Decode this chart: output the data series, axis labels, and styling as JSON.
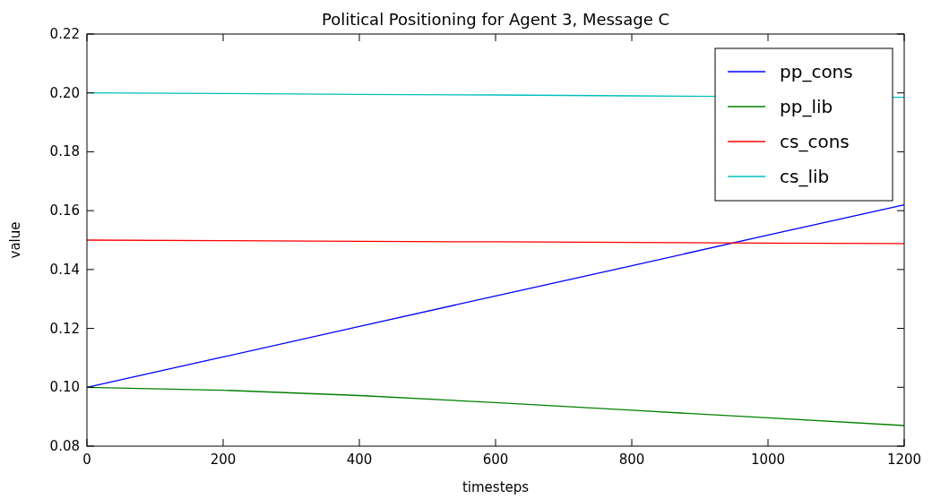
{
  "chart_data": {
    "type": "line",
    "title": "Political Positioning for Agent 3, Message C",
    "xlabel": "timesteps",
    "ylabel": "value",
    "x": [
      0,
      200,
      400,
      600,
      800,
      1000,
      1200
    ],
    "series": [
      {
        "name": "pp_cons",
        "color": "#0000ff",
        "values": [
          0.1,
          0.1103,
          0.1207,
          0.131,
          0.1413,
          0.1517,
          0.162
        ]
      },
      {
        "name": "pp_lib",
        "color": "#008000",
        "values": [
          0.1,
          0.099,
          0.0972,
          0.0948,
          0.0922,
          0.0896,
          0.087
        ]
      },
      {
        "name": "cs_cons",
        "color": "#ff0000",
        "values": [
          0.15,
          0.1498,
          0.1496,
          0.1494,
          0.1492,
          0.149,
          0.1488
        ]
      },
      {
        "name": "cs_lib",
        "color": "#00bfbf",
        "x": [
          0,
          200,
          400,
          600,
          800,
          1200
        ],
        "values": [
          0.2,
          0.1998,
          0.1995,
          0.1993,
          0.199,
          0.1985
        ]
      }
    ],
    "xlim": [
      0,
      1200
    ],
    "xticks": [
      0,
      200,
      400,
      600,
      800,
      1000,
      1200
    ],
    "ylim": [
      0.08,
      0.22
    ],
    "yticks": [
      {
        "value": 0.08,
        "label": "0.08"
      },
      {
        "value": 0.1,
        "label": "0.10"
      },
      {
        "value": 0.12,
        "label": "0.12"
      },
      {
        "value": 0.14,
        "label": "0.14"
      },
      {
        "value": 0.16,
        "label": "0.16"
      },
      {
        "value": 0.18,
        "label": "0.18"
      },
      {
        "value": 0.2,
        "label": "0.20"
      },
      {
        "value": 0.22,
        "label": "0.22"
      }
    ],
    "legend": "top right",
    "grid": false,
    "marker": "none",
    "line_style": "solid"
  }
}
